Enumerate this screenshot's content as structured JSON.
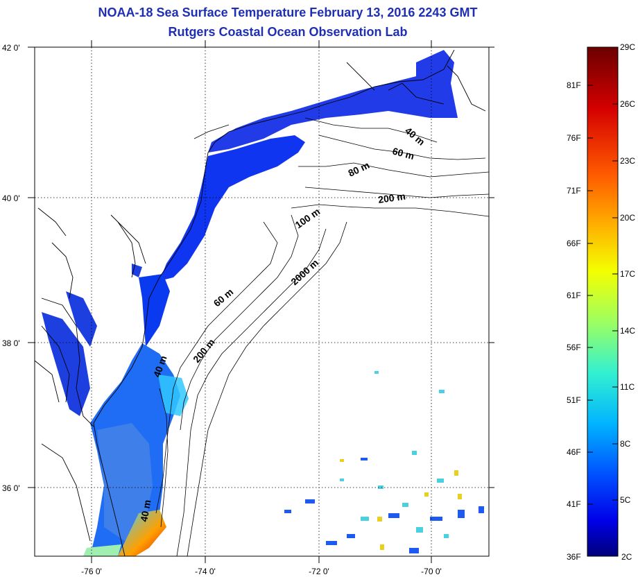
{
  "title": {
    "line1": "NOAA-18 Sea Surface Temperature February 13, 2016 2243 GMT",
    "line2": "Rutgers Coastal Ocean Observation Lab"
  },
  "axes": {
    "lat_ticks": [
      "42 0'",
      "40 0'",
      "38 0'",
      "36 0'"
    ],
    "lon_ticks": [
      "-76 0'",
      "-74 0'",
      "-72 0'",
      "-70 0'"
    ]
  },
  "depth_labels": [
    "40 m",
    "60 m",
    "80 m",
    "200 m",
    "100 m",
    "2000 m",
    "60 m",
    "200 m",
    "40 m",
    "40 m"
  ],
  "colorbar": {
    "fahrenheit": [
      "81F",
      "76F",
      "71F",
      "66F",
      "61F",
      "56F",
      "51F",
      "46F",
      "41F",
      "36F"
    ],
    "celsius": [
      "29C",
      "26C",
      "23C",
      "20C",
      "17C",
      "14C",
      "11C",
      "8C",
      "5C",
      "2C"
    ],
    "colors": [
      "#7a0000",
      "#c00000",
      "#ff2a00",
      "#ff7a00",
      "#ffc800",
      "#f4ff00",
      "#9cff55",
      "#33ffc4",
      "#00c4ff",
      "#0058ff",
      "#0000ff",
      "#00008a"
    ]
  }
}
